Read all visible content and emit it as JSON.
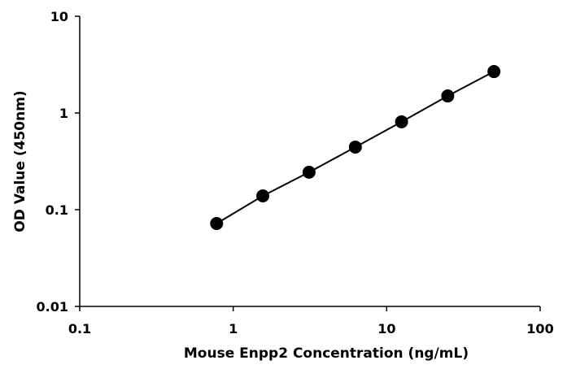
{
  "chart_data": {
    "type": "scatter",
    "title": "",
    "xlabel": "Mouse Enpp2 Concentration (ng/mL)",
    "ylabel": "OD Value (450nm)",
    "xscale": "log",
    "yscale": "log",
    "xlim": [
      0.1,
      100
    ],
    "ylim": [
      0.01,
      10
    ],
    "xticks": [
      0.1,
      1,
      10,
      100
    ],
    "yticks": [
      0.01,
      0.1,
      1,
      10
    ],
    "xtick_labels": [
      "0.1",
      "1",
      "10",
      "100"
    ],
    "ytick_labels": [
      "0.01",
      "0.1",
      "1",
      "10"
    ],
    "grid": false,
    "legend": "none",
    "series": [
      {
        "x": [
          0.78,
          1.56,
          3.12,
          6.25,
          12.5,
          25,
          50
        ],
        "y": [
          0.072,
          0.139,
          0.244,
          0.444,
          0.81,
          1.5,
          2.68
        ],
        "marker": "circle",
        "line": true,
        "color": "#000000"
      }
    ]
  }
}
